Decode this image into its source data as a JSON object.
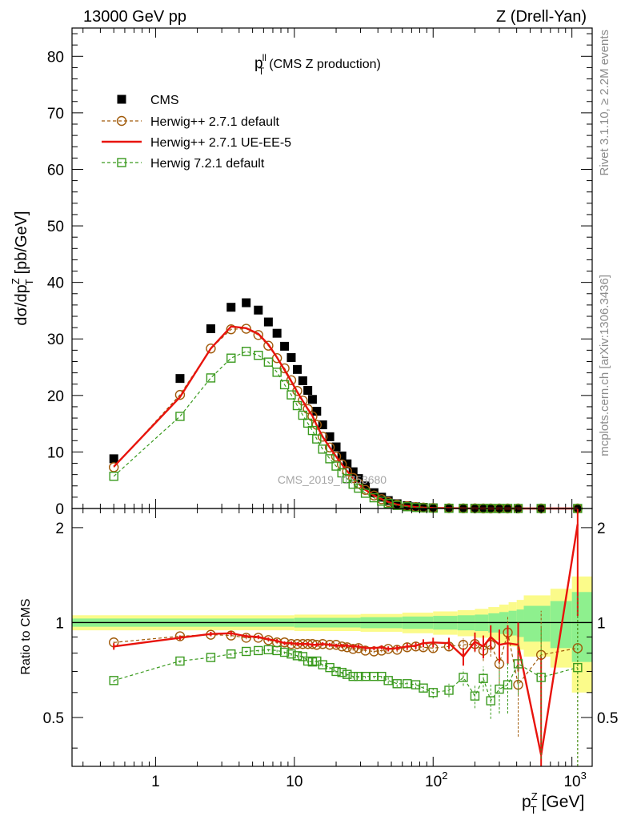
{
  "header": {
    "left": "13000 GeV pp",
    "right": "Z (Drell-Yan)"
  },
  "side_labels": {
    "rivet": "Rivet 3.1.10, ≥ 2.2M events",
    "mcplots": "mcplots.cern.ch [arXiv:1306.3436]"
  },
  "chart_data": {
    "type": "line",
    "title": "(CMS Z production)",
    "title_symbol": "p",
    "title_sup": "ll",
    "title_sub": "T",
    "watermark": "CMS_2019_I1753680",
    "xscale": "log",
    "xlim": [
      0.25,
      1400
    ],
    "main": {
      "ylabel": "dσ/dp",
      "ylabel_sup": "Z",
      "ylabel_sub": "T",
      "ylabel_unit": "[pb/GeV]",
      "ylim": [
        0,
        85
      ],
      "yticks": [
        0,
        10,
        20,
        30,
        40,
        50,
        60,
        70,
        80
      ],
      "yticklabels": [
        "0",
        "10",
        "20",
        "30",
        "40",
        "50",
        "60",
        "70",
        "80"
      ]
    },
    "ratio": {
      "ylabel": "Ratio to CMS",
      "ylim": [
        0.35,
        2.3
      ],
      "yscale": "log",
      "yticks": [
        0.5,
        1,
        2
      ],
      "yticklabels": [
        "0.5",
        "1",
        "2"
      ]
    },
    "xlabel": "p",
    "xlabel_sup": "Z",
    "xlabel_sub": "T",
    "xlabel_unit": "[GeV]",
    "xticks": [
      1,
      10,
      100,
      1000
    ],
    "xticklabels": [
      {
        "base": "1",
        "exp": ""
      },
      {
        "base": "10",
        "exp": ""
      },
      {
        "base": "10",
        "exp": "2"
      },
      {
        "base": "10",
        "exp": "3"
      }
    ],
    "legend": [
      {
        "name": "CMS",
        "style": "square-filled",
        "color": "#000000"
      },
      {
        "name": "Herwig++ 2.7.1 default",
        "style": "circle-dashed",
        "color": "#a05a0a"
      },
      {
        "name": "Herwig++ 2.7.1 UE-EE-5",
        "style": "solid",
        "color": "#e8130c"
      },
      {
        "name": "Herwig 7.2.1 default",
        "style": "square-dashed",
        "color": "#3a9a1e"
      }
    ],
    "x": [
      0.5,
      1.5,
      2.5,
      3.5,
      4.5,
      5.5,
      6.5,
      7.5,
      8.5,
      9.5,
      10.5,
      11.5,
      12.5,
      13.5,
      14.5,
      16,
      18,
      20,
      22,
      24,
      26.5,
      29,
      32.5,
      37.5,
      42.5,
      47.5,
      55,
      65,
      75,
      85,
      100,
      130,
      165,
      200,
      230,
      260,
      300,
      345,
      410,
      600,
      1100
    ],
    "series": [
      {
        "name": "CMS",
        "values": [
          8.8,
          23.0,
          31.8,
          35.6,
          36.4,
          35.1,
          33.0,
          31.0,
          28.7,
          26.7,
          24.6,
          22.6,
          20.9,
          19.3,
          17.2,
          14.8,
          12.7,
          10.9,
          9.3,
          7.9,
          6.5,
          5.3,
          4.0,
          2.8,
          2.0,
          1.4,
          0.85,
          0.5,
          0.3,
          0.2,
          0.12,
          0.06,
          0.03,
          0.02,
          0.012,
          0.009,
          0.006,
          0.004,
          0.003,
          0.0015,
          0.0004
        ]
      },
      {
        "name": "Herwig++ 2.7.1 default",
        "values": [
          7.3,
          20.1,
          28.3,
          31.7,
          31.8,
          30.7,
          28.8,
          26.6,
          24.8,
          22.7,
          20.8,
          19.1,
          17.6,
          16.3,
          14.8,
          12.7,
          10.8,
          9.2,
          7.8,
          6.6,
          5.4,
          4.4,
          3.3,
          2.3,
          1.65,
          1.15,
          0.7,
          0.42,
          0.25,
          0.16,
          0.09,
          0.05,
          0.025,
          0.016,
          0.01,
          0.007,
          0.004,
          0.003,
          0.002,
          0.001,
          0.0003
        ],
        "ratio": [
          0.865,
          0.905,
          0.915,
          0.91,
          0.895,
          0.895,
          0.88,
          0.865,
          0.865,
          0.855,
          0.855,
          0.855,
          0.855,
          0.855,
          0.85,
          0.855,
          0.85,
          0.85,
          0.84,
          0.835,
          0.825,
          0.83,
          0.815,
          0.81,
          0.815,
          0.825,
          0.82,
          0.835,
          0.84,
          0.835,
          0.83,
          0.84,
          0.85,
          0.855,
          0.815,
          0.85,
          0.74,
          0.93,
          0.635,
          0.79,
          0.83
        ],
        "ratio_err": [
          0.01,
          0.01,
          0.01,
          0.01,
          0.01,
          0.01,
          0.01,
          0.01,
          0.01,
          0.01,
          0.01,
          0.01,
          0.01,
          0.01,
          0.01,
          0.01,
          0.01,
          0.01,
          0.01,
          0.01,
          0.01,
          0.01,
          0.01,
          0.01,
          0.01,
          0.015,
          0.015,
          0.02,
          0.02,
          0.02,
          0.025,
          0.03,
          0.04,
          0.05,
          0.06,
          0.07,
          0.1,
          0.12,
          0.2,
          0.3,
          0.5
        ]
      },
      {
        "name": "Herwig++ 2.7.1 UE-EE-5",
        "values": [
          7.4,
          19.7,
          28.3,
          32.2,
          31.9,
          30.9,
          29.0,
          26.7,
          24.5,
          22.5,
          20.6,
          19.0,
          17.6,
          16.4,
          14.7,
          12.7,
          10.8,
          9.2,
          7.8,
          6.6,
          5.4,
          4.4,
          3.3,
          2.3,
          1.66,
          1.15,
          0.7,
          0.42,
          0.25,
          0.17,
          0.1,
          0.05,
          0.024,
          0.016,
          0.01,
          0.007,
          0.005,
          0.003,
          0.0025,
          0.0008,
          0.0008
        ],
        "ratio": [
          0.84,
          0.895,
          0.92,
          0.925,
          0.905,
          0.9,
          0.885,
          0.875,
          0.86,
          0.86,
          0.855,
          0.855,
          0.855,
          0.85,
          0.85,
          0.855,
          0.85,
          0.845,
          0.845,
          0.845,
          0.84,
          0.84,
          0.83,
          0.83,
          0.835,
          0.825,
          0.83,
          0.84,
          0.845,
          0.86,
          0.865,
          0.86,
          0.78,
          0.87,
          0.84,
          0.9,
          0.85,
          0.86,
          0.85,
          0.38,
          2.05
        ],
        "ratio_err": [
          0.02,
          0.015,
          0.015,
          0.015,
          0.012,
          0.012,
          0.012,
          0.012,
          0.012,
          0.012,
          0.012,
          0.012,
          0.012,
          0.012,
          0.012,
          0.012,
          0.012,
          0.012,
          0.012,
          0.012,
          0.012,
          0.012,
          0.012,
          0.012,
          0.012,
          0.015,
          0.015,
          0.02,
          0.02,
          0.025,
          0.03,
          0.035,
          0.05,
          0.06,
          0.07,
          0.08,
          0.1,
          0.12,
          0.15,
          0.4,
          1.0
        ]
      },
      {
        "name": "Herwig 7.2.1 default",
        "values": [
          5.7,
          16.3,
          23.1,
          26.6,
          27.8,
          27.1,
          25.9,
          24.1,
          21.9,
          20.1,
          18.2,
          16.5,
          15.1,
          13.8,
          12.3,
          10.5,
          8.8,
          7.5,
          6.3,
          5.3,
          4.3,
          3.6,
          2.7,
          1.9,
          1.3,
          0.9,
          0.55,
          0.32,
          0.19,
          0.12,
          0.07,
          0.037,
          0.018,
          0.011,
          0.007,
          0.005,
          0.003,
          0.002,
          0.002,
          0.001,
          0.0003
        ],
        "ratio": [
          0.655,
          0.755,
          0.775,
          0.795,
          0.81,
          0.815,
          0.82,
          0.815,
          0.805,
          0.795,
          0.785,
          0.78,
          0.755,
          0.75,
          0.755,
          0.735,
          0.72,
          0.7,
          0.695,
          0.685,
          0.675,
          0.675,
          0.675,
          0.675,
          0.675,
          0.655,
          0.64,
          0.64,
          0.635,
          0.62,
          0.6,
          0.61,
          0.67,
          0.585,
          0.665,
          0.565,
          0.615,
          0.635,
          0.74,
          0.67,
          0.72
        ],
        "ratio_err": [
          0.01,
          0.01,
          0.01,
          0.01,
          0.01,
          0.01,
          0.01,
          0.01,
          0.01,
          0.01,
          0.01,
          0.01,
          0.01,
          0.01,
          0.01,
          0.01,
          0.01,
          0.01,
          0.01,
          0.01,
          0.01,
          0.01,
          0.01,
          0.01,
          0.01,
          0.015,
          0.015,
          0.02,
          0.02,
          0.02,
          0.025,
          0.03,
          0.04,
          0.05,
          0.06,
          0.07,
          0.1,
          0.12,
          0.15,
          0.3,
          0.5
        ]
      }
    ],
    "ratio_band": {
      "edges": [
        0.25,
        10,
        30,
        60,
        100,
        150,
        200,
        250,
        300,
        350,
        400,
        450,
        700,
        1000,
        1400
      ],
      "inner": [
        0.03,
        0.035,
        0.04,
        0.045,
        0.05,
        0.055,
        0.06,
        0.07,
        0.08,
        0.09,
        0.1,
        0.13,
        0.17,
        0.25
      ],
      "outer": [
        0.055,
        0.06,
        0.065,
        0.075,
        0.085,
        0.095,
        0.105,
        0.12,
        0.14,
        0.16,
        0.18,
        0.22,
        0.28,
        0.4
      ]
    }
  }
}
